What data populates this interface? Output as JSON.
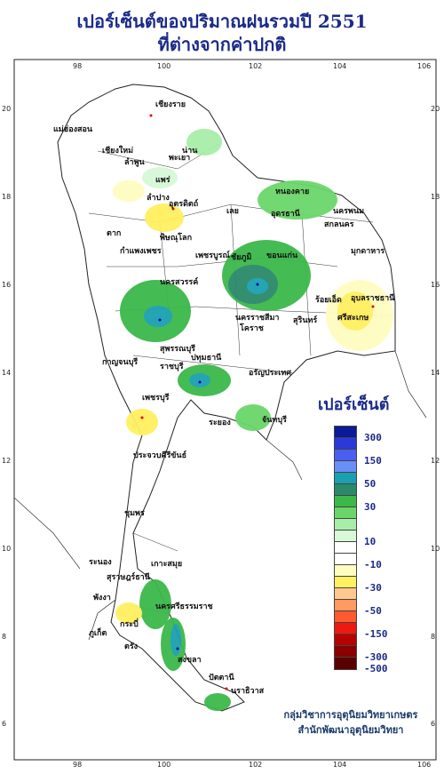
{
  "title_line1": "เปอร์เซ็นต์ของปริมาณฝนรวมปี 2551",
  "title_line2": "ที่ต่างจากค่าปกติ",
  "legend": {
    "title": "เปอร์เซ็นต์",
    "entries": [
      {
        "label": "300",
        "color": "#0a1a9a"
      },
      {
        "label": "",
        "color": "#2a3ad8"
      },
      {
        "label": "150",
        "color": "#4a5ef0"
      },
      {
        "label": "",
        "color": "#6a8ef8"
      },
      {
        "label": "50",
        "color": "#1aa0b0"
      },
      {
        "label": "",
        "color": "#2a8a6a"
      },
      {
        "label": "30",
        "color": "#3cb84a"
      },
      {
        "label": "",
        "color": "#6ad66a"
      },
      {
        "label": "",
        "color": "#a8eea8"
      },
      {
        "label": "10",
        "color": "#d8f8d8"
      },
      {
        "label": "",
        "color": "#ffffff"
      },
      {
        "label": "-10",
        "color": "#ffffff"
      },
      {
        "label": "",
        "color": "#fffcc0"
      },
      {
        "label": "-30",
        "color": "#fff060"
      },
      {
        "label": "",
        "color": "#ffc890"
      },
      {
        "label": "-50",
        "color": "#ff9a60"
      },
      {
        "label": "",
        "color": "#ff5a30"
      },
      {
        "label": "-150",
        "color": "#ee1a10"
      },
      {
        "label": "",
        "color": "#b80000"
      },
      {
        "label": "-300",
        "color": "#8a0000"
      },
      {
        "label": "-500",
        "color": "#5a0000"
      }
    ]
  },
  "credits": {
    "line1": "กลุ่มวิชาการอุตุนิยมวิทยาเกษตร",
    "line2": "สำนักพัฒนาอุตุนิยมวิทยา"
  },
  "axes": {
    "lon_ticks": [
      "98",
      "100",
      "102",
      "104",
      "106"
    ],
    "lat_ticks": [
      "20",
      "18",
      "16",
      "14",
      "12",
      "10",
      "8",
      "6"
    ]
  },
  "places": [
    "เชียงราย",
    "แม่ฮ่องสอน",
    "เชียงใหม่",
    "ลำพูน",
    "พะเยา",
    "น่าน",
    "แพร่",
    "ลำปาง",
    "หนองคาย",
    "อุดรธานี",
    "นครพนม",
    "สกลนคร",
    "มุกดาหาร",
    "เลย",
    "ตาก",
    "อุตรดิตถ์",
    "พิษณุโลก",
    "กำแพงเพชร",
    "เพชรบูรณ์",
    "ชัยภูมิ",
    "ขอนแก่น",
    "นครสวรรค์",
    "ร้อยเอ็ด",
    "อุบลราชธานี",
    "นครราชสีมา",
    "สุรินทร์",
    "ศรีสะเกษ",
    "โคราช",
    "สุพรรณบุรี",
    "กาญจนบุรี",
    "ราชบุรี",
    "ปทุมธานี",
    "อรัญประเทศ",
    "จันทบุรี",
    "ระยอง",
    "เพชรบุรี",
    "ประจวบคีรีขันธ์",
    "ชุมพร",
    "ระนอง",
    "สุราษฎร์ธานี",
    "เกาะสมุย",
    "พังงา",
    "นครศรีธรรมราช",
    "ภูเก็ต",
    "กระบี่",
    "ตรัง",
    "สงขลา",
    "ปัตตานี",
    "นราธิวาส"
  ]
}
